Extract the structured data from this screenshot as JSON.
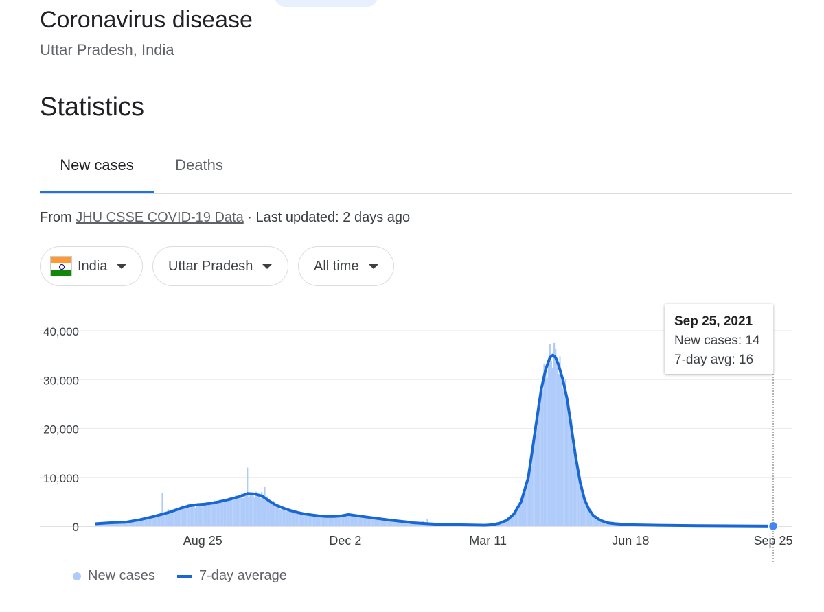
{
  "header": {
    "title": "Coronavirus disease",
    "subtitle": "Uttar Pradesh, India"
  },
  "section_title": "Statistics",
  "tabs": [
    {
      "label": "New cases",
      "active": true
    },
    {
      "label": "Deaths",
      "active": false
    }
  ],
  "source": {
    "prefix": "From ",
    "link": "JHU CSSE COVID-19 Data",
    "suffix": " · Last updated: 2 days ago"
  },
  "filters": {
    "country": "India",
    "region": "Uttar Pradesh",
    "range": "All time"
  },
  "colors": {
    "bar": "#aecbfa",
    "line": "#1967d2",
    "accent": "#1a73e8"
  },
  "tooltip": {
    "date": "Sep 25, 2021",
    "new_cases": "New cases: 14",
    "avg": "7-day avg: 16"
  },
  "legend": {
    "bars": "New cases",
    "line": "7-day average"
  },
  "chart_data": {
    "type": "bar",
    "ylim": [
      0,
      40000
    ],
    "yticks": [
      0,
      10000,
      20000,
      30000,
      40000
    ],
    "ytick_labels": [
      "0",
      "10,000",
      "20,000",
      "30,000",
      "40,000"
    ],
    "xticks": [
      {
        "label": "Aug 25",
        "day": 174
      },
      {
        "label": "Dec 2",
        "day": 273
      },
      {
        "label": "Mar 11",
        "day": 372
      },
      {
        "label": "Jun 18",
        "day": 471
      },
      {
        "label": "Sep 25",
        "day": 570
      }
    ],
    "x_domain": [
      100,
      570
    ],
    "series": [
      {
        "name": "7-day average",
        "type": "line",
        "points": [
          [
            100,
            500
          ],
          [
            110,
            700
          ],
          [
            120,
            800
          ],
          [
            130,
            1300
          ],
          [
            140,
            2000
          ],
          [
            150,
            2800
          ],
          [
            160,
            3800
          ],
          [
            165,
            4200
          ],
          [
            170,
            4400
          ],
          [
            175,
            4500
          ],
          [
            180,
            4700
          ],
          [
            185,
            5000
          ],
          [
            190,
            5300
          ],
          [
            195,
            5700
          ],
          [
            200,
            6100
          ],
          [
            205,
            6700
          ],
          [
            210,
            6600
          ],
          [
            215,
            6200
          ],
          [
            220,
            5200
          ],
          [
            225,
            4300
          ],
          [
            230,
            3700
          ],
          [
            235,
            3200
          ],
          [
            240,
            2800
          ],
          [
            245,
            2500
          ],
          [
            250,
            2300
          ],
          [
            255,
            2100
          ],
          [
            260,
            2000
          ],
          [
            265,
            2000
          ],
          [
            270,
            2100
          ],
          [
            275,
            2400
          ],
          [
            280,
            2200
          ],
          [
            285,
            2000
          ],
          [
            290,
            1800
          ],
          [
            295,
            1600
          ],
          [
            300,
            1400
          ],
          [
            305,
            1200
          ],
          [
            310,
            1050
          ],
          [
            315,
            900
          ],
          [
            320,
            700
          ],
          [
            330,
            500
          ],
          [
            340,
            350
          ],
          [
            350,
            300
          ],
          [
            360,
            250
          ],
          [
            370,
            200
          ],
          [
            375,
            300
          ],
          [
            380,
            600
          ],
          [
            385,
            1200
          ],
          [
            390,
            2500
          ],
          [
            395,
            5000
          ],
          [
            400,
            10000
          ],
          [
            403,
            16000
          ],
          [
            406,
            22000
          ],
          [
            409,
            28000
          ],
          [
            412,
            32000
          ],
          [
            415,
            34500
          ],
          [
            417,
            35000
          ],
          [
            419,
            34500
          ],
          [
            421,
            33000
          ],
          [
            424,
            30000
          ],
          [
            427,
            26000
          ],
          [
            430,
            20000
          ],
          [
            433,
            14000
          ],
          [
            436,
            9000
          ],
          [
            439,
            5500
          ],
          [
            442,
            3500
          ],
          [
            445,
            2200
          ],
          [
            450,
            1200
          ],
          [
            455,
            700
          ],
          [
            460,
            500
          ],
          [
            470,
            300
          ],
          [
            490,
            200
          ],
          [
            520,
            100
          ],
          [
            550,
            50
          ],
          [
            570,
            16
          ]
        ]
      },
      {
        "name": "New cases",
        "type": "bar",
        "spikes": [
          [
            146,
            6800
          ],
          [
            150,
            3500
          ],
          [
            182,
            4000
          ],
          [
            205,
            12000
          ],
          [
            207,
            2000
          ],
          [
            215,
            7000
          ],
          [
            217,
            8000
          ],
          [
            220,
            3800
          ],
          [
            225,
            1400
          ],
          [
            327,
            1000
          ],
          [
            330,
            1500
          ],
          [
            418,
            37500
          ],
          [
            415,
            36000
          ],
          [
            420,
            34000
          ]
        ]
      }
    ]
  }
}
